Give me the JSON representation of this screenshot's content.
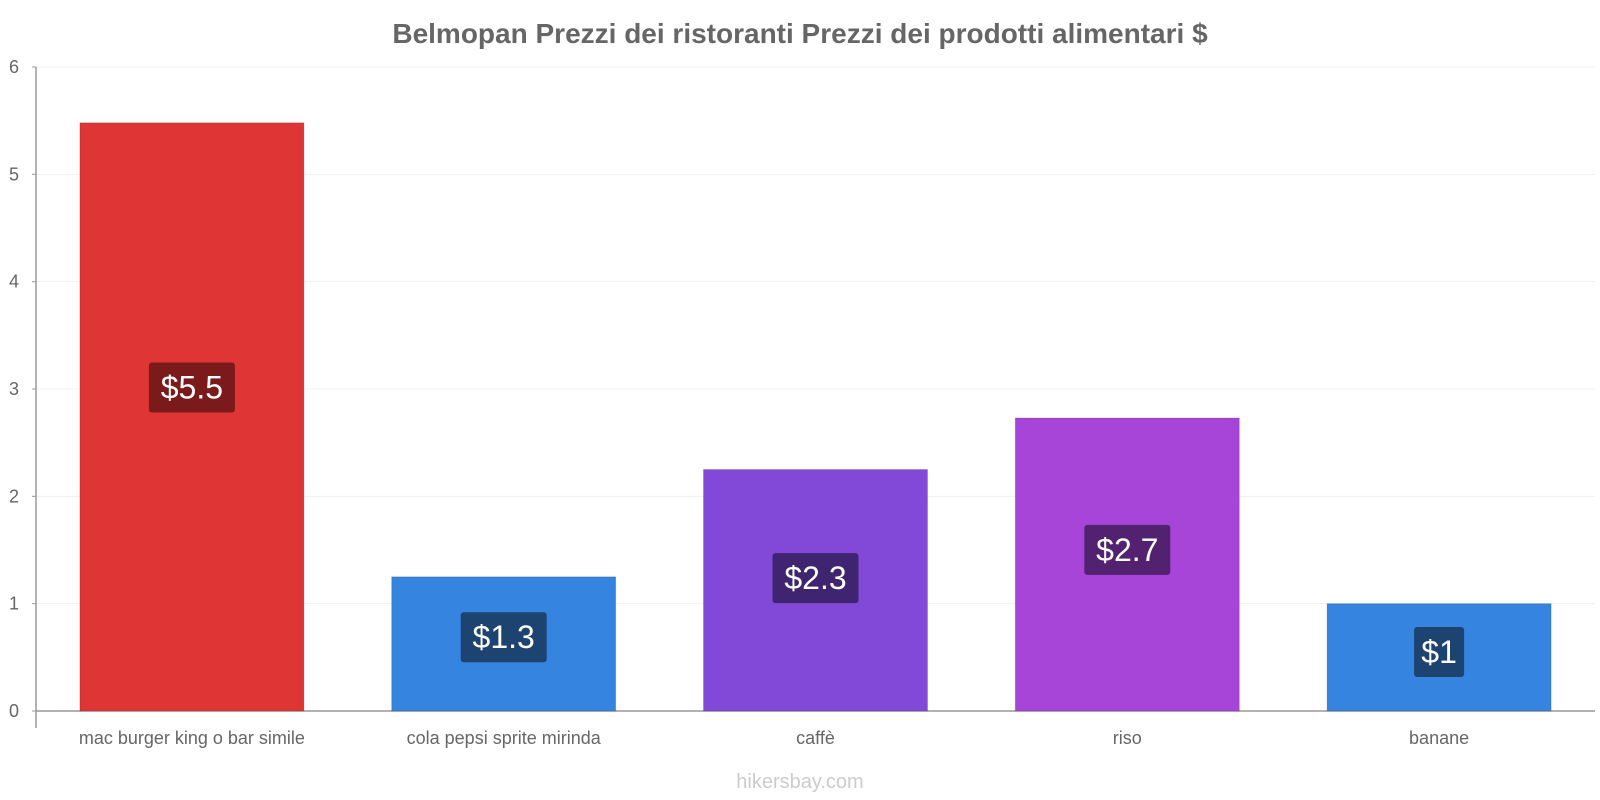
{
  "chart_data": {
    "type": "bar",
    "title": "Belmopan Prezzi dei ristoranti Prezzi dei prodotti alimentari $",
    "xlabel": "",
    "ylabel": "",
    "ylim": [
      0,
      6
    ],
    "yticks": [
      0,
      1,
      2,
      3,
      4,
      5,
      6
    ],
    "grid": true,
    "categories": [
      "mac burger king o bar simile",
      "cola pepsi sprite mirinda",
      "caffè",
      "riso",
      "banane"
    ],
    "values": [
      5.48,
      1.25,
      2.25,
      2.73,
      1.0
    ],
    "value_labels": [
      "$5.5",
      "$1.3",
      "$2.3",
      "$2.7",
      "$1"
    ],
    "colors": [
      "#e03535",
      "#3584e0",
      "#8249d9",
      "#a845d9",
      "#3584e0"
    ],
    "label_colors": [
      "#7a1a1a",
      "#1d4370",
      "#3f2470",
      "#522170",
      "#1d4370"
    ]
  },
  "watermark": "hikersbay.com"
}
